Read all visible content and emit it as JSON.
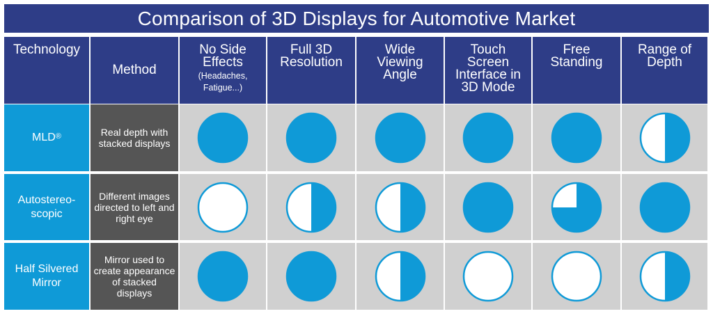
{
  "title": "Comparison of 3D Displays for Automotive Market",
  "header": {
    "technology": "Technology",
    "method": "Method",
    "columns": [
      {
        "label": "No Side Effects",
        "sub": "(Headaches, Fatigue...)"
      },
      {
        "label": "Full 3D Resolution",
        "sub": ""
      },
      {
        "label": "Wide Viewing Angle",
        "sub": ""
      },
      {
        "label": "Touch Screen Interface in 3D Mode",
        "sub": ""
      },
      {
        "label": "Free Standing",
        "sub": ""
      },
      {
        "label": "Range of Depth",
        "sub": ""
      }
    ]
  },
  "rows": [
    {
      "technology": "MLD",
      "technology_sup": "®",
      "method": "Real depth with stacked displays"
    },
    {
      "technology": "Autostereo-scopic",
      "technology_sup": "",
      "method": "Different images directed to left and right eye"
    },
    {
      "technology": "Half Silvered Mirror",
      "technology_sup": "",
      "method": "Mirror used to create appearance of stacked displays"
    }
  ],
  "colors": {
    "header_bg": "#2e3d87",
    "technology_bg": "#0f9ad7",
    "method_bg": "#555555",
    "cell_bg": "#d0d0d0",
    "fill": "#0f9ad7",
    "empty": "#ffffff"
  },
  "chart_data": {
    "type": "table",
    "title": "Comparison of 3D Displays for Automotive Market",
    "encoding": "harvey-ball fill fraction",
    "columns": [
      "No Side Effects (Headaches, Fatigue...)",
      "Full 3D Resolution",
      "Wide Viewing Angle",
      "Touch Screen Interface in 3D Mode",
      "Free Standing",
      "Range of Depth"
    ],
    "series": [
      {
        "name": "MLD®",
        "values": [
          1,
          1,
          1,
          1,
          1,
          0.5
        ]
      },
      {
        "name": "Autostereo-scopic",
        "values": [
          0,
          0.5,
          0.5,
          1,
          0.75,
          1
        ]
      },
      {
        "name": "Half Silvered Mirror",
        "values": [
          1,
          1,
          0.5,
          0,
          0,
          0.5
        ]
      }
    ]
  }
}
